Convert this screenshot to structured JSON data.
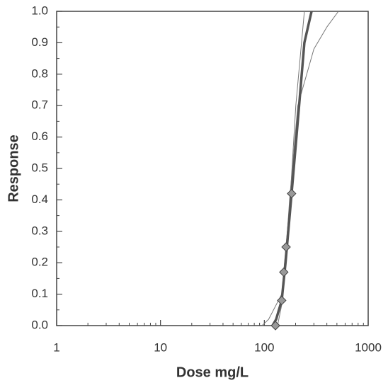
{
  "chart_data": {
    "type": "line",
    "x_label": "Dose mg/L",
    "y_label": "Response",
    "xscale": "log",
    "xlim": [
      1,
      1000
    ],
    "xticks": [
      1,
      10,
      100,
      1000
    ],
    "ylim": [
      0,
      1
    ],
    "yticks": [
      {
        "value": 0,
        "label": "0.0"
      },
      {
        "value": 0.1,
        "label": "0.1"
      },
      {
        "value": 0.2,
        "label": "0.2"
      },
      {
        "value": 0.3,
        "label": "0.3"
      },
      {
        "value": 0.4,
        "label": "0.4"
      },
      {
        "value": 0.5,
        "label": "0.5"
      },
      {
        "value": 0.6,
        "label": "0.6"
      },
      {
        "value": 0.7,
        "label": "0.7"
      },
      {
        "value": 0.8,
        "label": "0.8"
      },
      {
        "value": 0.9,
        "label": "0.9"
      },
      {
        "value": 1,
        "label": "1.0"
      }
    ],
    "series": [
      {
        "color": "#777777",
        "line_width": 1,
        "x": [
          95,
          110,
          147,
          177,
          201,
          243
        ],
        "values": [
          0,
          0.02,
          0.1,
          0.4,
          0.7,
          1.0
        ]
      },
      {
        "color": "#777777",
        "line_width": 1,
        "x": [
          134,
          150,
          175,
          210,
          300,
          400,
          517
        ],
        "values": [
          0,
          0.08,
          0.4,
          0.7,
          0.88,
          0.95,
          1.0
        ]
      },
      {
        "color": "#555555",
        "line_width": 3.5,
        "x": [
          120,
          130,
          147,
          160,
          183,
          210,
          243,
          285
        ],
        "values": [
          0,
          0.02,
          0.08,
          0.2,
          0.42,
          0.65,
          0.9,
          1.0
        ]
      },
      {
        "color": "#999999",
        "marker": "diamond",
        "x": [
          128,
          147,
          154,
          162,
          183
        ],
        "values": [
          0,
          0.08,
          0.17,
          0.25,
          0.42
        ]
      }
    ]
  }
}
